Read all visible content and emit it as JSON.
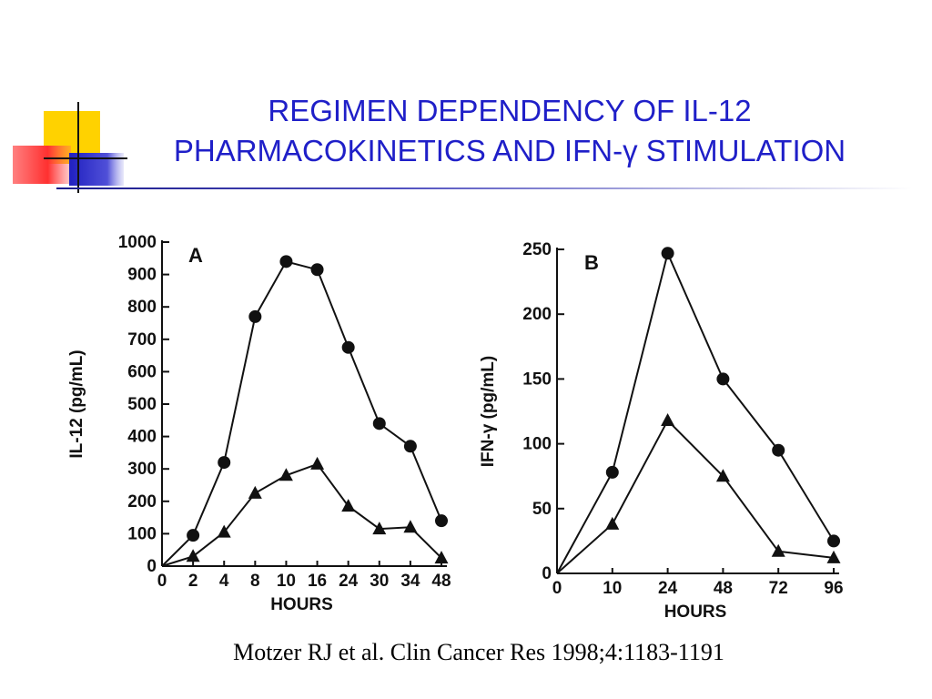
{
  "slide": {
    "title_line1": "REGIMEN DEPENDENCY OF IL-12",
    "title_line2": "PHARMACOKINETICS AND IFN-γ STIMULATION",
    "citation": "Motzer RJ et al. Clin Cancer Res 1998;4:1183-1191"
  },
  "colors": {
    "title": "#1f1fc8",
    "logo_yellow": "#ffd200",
    "logo_red": "#ff4040",
    "logo_blue": "#2828c8"
  },
  "chart_data": [
    {
      "type": "line",
      "panel_label": "A",
      "xlabel": "HOURS",
      "ylabel": "IL-12 (pg/mL)",
      "categories": [
        "0",
        "2",
        "4",
        "8",
        "10",
        "16",
        "24",
        "30",
        "34",
        "48"
      ],
      "ylim": [
        0,
        1000
      ],
      "yticks": [
        "0",
        "100",
        "200",
        "300",
        "400",
        "500",
        "600",
        "700",
        "800",
        "900",
        "1000"
      ],
      "grid": false,
      "series": [
        {
          "marker": "circle",
          "values": [
            0,
            95,
            320,
            770,
            940,
            915,
            675,
            440,
            370,
            140
          ]
        },
        {
          "marker": "triangle",
          "values": [
            0,
            30,
            105,
            225,
            280,
            315,
            185,
            115,
            120,
            25
          ]
        }
      ]
    },
    {
      "type": "line",
      "panel_label": "B",
      "xlabel": "HOURS",
      "ylabel": "IFN-γ (pg/mL)",
      "categories": [
        "0",
        "10",
        "24",
        "48",
        "72",
        "96"
      ],
      "ylim": [
        0,
        250
      ],
      "yticks": [
        "0",
        "50",
        "100",
        "150",
        "200",
        "250"
      ],
      "grid": false,
      "series": [
        {
          "marker": "circle",
          "values": [
            0,
            78,
            247,
            150,
            95,
            25
          ]
        },
        {
          "marker": "triangle",
          "values": [
            0,
            38,
            118,
            75,
            17,
            12
          ]
        }
      ]
    }
  ]
}
